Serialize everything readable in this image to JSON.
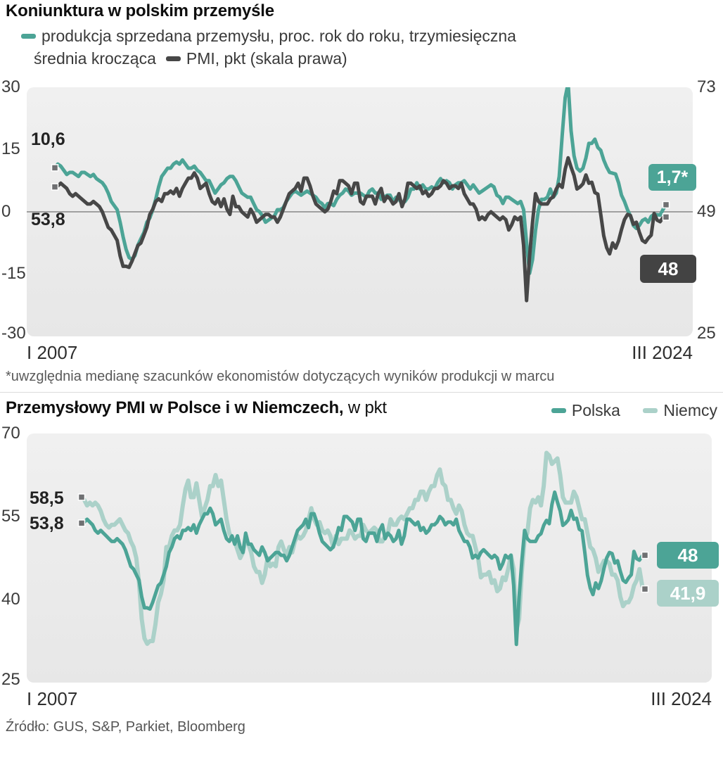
{
  "colors": {
    "teal": "#4ca496",
    "light_teal": "#abd1c9",
    "dark": "#474747",
    "marker": "#6f7072",
    "zero_line": "#a0a0a0"
  },
  "chart1": {
    "title": "Koniunktura w polskim przemyśle",
    "legend": {
      "s1_line1": "produkcja sprzedana przemysłu, proc. rok do roku, trzymiesięczna",
      "s1_line2": "średnia krocząca",
      "s2": "PMI, pkt (skala prawa)"
    },
    "yticks_left": [
      "30",
      "15",
      "0",
      "-15",
      "-30"
    ],
    "yticks_right": [
      "73",
      "49",
      "25"
    ],
    "x_start": "I 2007",
    "x_end": "III 2024",
    "start_labels": {
      "production": "10,6",
      "pmi": "53,8"
    },
    "end_badges": {
      "production": "1,7*",
      "pmi": "48"
    },
    "footnote": "*uwzględnia medianę szacunków ekonomistów dotyczących wyników produkcji w marcu"
  },
  "chart2": {
    "title_bold": "Przemysłowy PMI w Polsce i w Niemczech,",
    "title_rest": " w pkt",
    "legend": {
      "poland": "Polska",
      "germany": "Niemcy"
    },
    "yticks": [
      "70",
      "55",
      "40",
      "25"
    ],
    "x_start": "I 2007",
    "x_end": "III 2024",
    "start_labels": {
      "germany": "58,5",
      "poland": "53,8"
    },
    "end_badges": {
      "poland": "48",
      "germany": "41,9"
    }
  },
  "source": "Źródło: GUS, S&P, Parkiet, Bloomberg",
  "chart_data": [
    {
      "type": "line",
      "title": "Koniunktura w polskim przemyśle",
      "x_start": "I 2007",
      "x_end": "III 2024",
      "x_interval": "monthly",
      "ylim_left": [
        -30,
        30
      ],
      "ylim_right": [
        25,
        73
      ],
      "grid": "zero-line-only",
      "footnote": "*uwzględnia medianę szacunków ekonomistów dotyczących wyników produkcji w marcu",
      "series": [
        {
          "name": "produkcja sprzedana przemysłu, proc. rok do roku, trzymiesięczna średnia krocząca",
          "axis": "left",
          "color": "#4ca496",
          "first_value": 10.6,
          "last_value": 1.7,
          "values": [
            10.6,
            11.5,
            11.0,
            10.0,
            9.0,
            9.5,
            9.5,
            9.0,
            8.5,
            9.5,
            9.5,
            9.0,
            8.5,
            9.0,
            8.0,
            7.5,
            7.0,
            6.0,
            4.5,
            2.5,
            1.5,
            0.5,
            -2.5,
            -6.0,
            -9.0,
            -11.0,
            -11.5,
            -10.5,
            -8.0,
            -6.5,
            -5.0,
            -2.5,
            -1.5,
            0.5,
            3.0,
            6.0,
            8.5,
            9.5,
            10.5,
            10.5,
            11.5,
            12.0,
            11.5,
            12.5,
            11.5,
            10.5,
            10.5,
            11.0,
            10.0,
            9.5,
            8.5,
            7.5,
            7.5,
            6.0,
            4.5,
            5.5,
            6.5,
            7.0,
            8.0,
            8.5,
            8.5,
            7.5,
            6.0,
            4.5,
            4.0,
            3.5,
            3.5,
            2.0,
            0.5,
            0.0,
            -1.0,
            -2.5,
            -2.0,
            -1.5,
            -1.0,
            0.5,
            0.5,
            1.0,
            2.5,
            3.5,
            4.5,
            5.0,
            4.5,
            4.0,
            4.5,
            5.0,
            4.5,
            4.0,
            3.5,
            2.5,
            2.0,
            1.0,
            2.0,
            2.0,
            1.5,
            3.0,
            4.0,
            4.5,
            5.5,
            5.0,
            4.0,
            4.5,
            4.5,
            4.5,
            4.0,
            3.5,
            5.0,
            5.5,
            4.5,
            4.5,
            3.0,
            3.5,
            4.0,
            4.0,
            2.5,
            3.5,
            3.0,
            2.0,
            2.5,
            3.5,
            5.5,
            5.5,
            7.0,
            5.5,
            6.5,
            5.5,
            5.5,
            6.0,
            5.5,
            7.0,
            8.0,
            7.0,
            7.5,
            7.0,
            5.5,
            6.5,
            7.0,
            7.0,
            7.5,
            6.5,
            5.5,
            6.5,
            5.5,
            4.5,
            5.0,
            5.5,
            6.0,
            6.5,
            6.0,
            4.0,
            3.5,
            2.0,
            3.5,
            3.5,
            3.0,
            2.5,
            2.0,
            2.5,
            0.5,
            -7.5,
            -14.8,
            -11.5,
            -4.5,
            0.5,
            3.0,
            3.0,
            3.5,
            5.5,
            3.5,
            4.5,
            8.5,
            18.5,
            27.5,
            31.0,
            19.5,
            13.5,
            10.5,
            9.8,
            10.5,
            13.0,
            16.5,
            16.5,
            17.5,
            15.5,
            14.8,
            12.5,
            10.8,
            9.5,
            9.3,
            9.1,
            7.0,
            4.0,
            2.5,
            0.5,
            -1.0,
            -3.3,
            -4.0,
            -3.3,
            -2.1,
            -1.7,
            -2.5,
            -1.1,
            -0.6,
            -0.7,
            -0.8,
            0.6,
            1.7
          ]
        },
        {
          "name": "PMI, pkt (skala prawa)",
          "axis": "right",
          "color": "#474747",
          "first_value": 53.8,
          "last_value": 48,
          "values": [
            53.8,
            54.0,
            54.5,
            54.0,
            53.5,
            52.5,
            52.0,
            52.5,
            52.0,
            51.5,
            51.0,
            50.5,
            50.5,
            51.0,
            50.5,
            50.0,
            49.0,
            47.5,
            46.0,
            45.5,
            44.5,
            43.5,
            40.5,
            38.5,
            38.5,
            38.3,
            39.5,
            41.0,
            42.5,
            43.0,
            44.5,
            46.0,
            48.5,
            49.5,
            51.0,
            51.5,
            51.0,
            52.5,
            52.5,
            53.0,
            52.5,
            53.5,
            52.0,
            53.5,
            54.5,
            55.5,
            55.5,
            56.5,
            55.5,
            53.5,
            54.0,
            54.5,
            52.5,
            51.0,
            50.5,
            51.5,
            50.0,
            51.5,
            49.5,
            48.5,
            52.0,
            50.0,
            50.0,
            49.0,
            48.5,
            48.0,
            49.5,
            48.5,
            47.0,
            47.5,
            48.0,
            48.5,
            48.5,
            48.0,
            48.0,
            47.0,
            48.0,
            49.5,
            51.0,
            52.5,
            53.0,
            53.5,
            54.5,
            53.0,
            55.5,
            55.5,
            54.0,
            52.0,
            50.5,
            50.0,
            49.5,
            49.0,
            49.5,
            51.0,
            53.0,
            52.5,
            55.0,
            55.0,
            54.5,
            54.0,
            52.5,
            54.5,
            54.5,
            51.0,
            50.5,
            52.0,
            52.0,
            52.0,
            50.5,
            52.5,
            53.5,
            51.0,
            52.0,
            51.5,
            50.5,
            51.0,
            52.5,
            50.0,
            51.5,
            54.5,
            54.5,
            54.0,
            53.5,
            54.0,
            52.5,
            53.0,
            52.0,
            52.5,
            53.5,
            53.5,
            54.0,
            55.0,
            54.5,
            53.5,
            54.0,
            54.0,
            53.5,
            54.5,
            52.5,
            51.5,
            50.5,
            50.5,
            49.5,
            47.5,
            48.0,
            47.5,
            48.5,
            49.0,
            48.5,
            48.0,
            47.5,
            48.0,
            47.5,
            45.5,
            46.5,
            48.0,
            47.5,
            48.0,
            42.5,
            31.9,
            40.5,
            47.0,
            52.5,
            51.0,
            50.5,
            50.5,
            50.5,
            51.5,
            51.9,
            53.4,
            54.3,
            53.7,
            57.2,
            59.4,
            57.6,
            56.0,
            53.4,
            53.8,
            54.4,
            56.1,
            54.5,
            54.7,
            52.7,
            52.4,
            48.5,
            44.4,
            42.1,
            40.9,
            43.0,
            42.0,
            43.4,
            45.6,
            47.5,
            48.5,
            48.3,
            46.6,
            47.0,
            45.1,
            43.5,
            43.1,
            43.9,
            44.5,
            48.7,
            47.4,
            47.1,
            47.9,
            48.0
          ]
        }
      ]
    },
    {
      "type": "line",
      "title": "Przemysłowy PMI w Polsce i w Niemczech, w pkt",
      "x_start": "I 2007",
      "x_end": "III 2024",
      "x_interval": "monthly",
      "ylim": [
        25,
        70
      ],
      "grid": "off",
      "series": [
        {
          "name": "Polska",
          "color": "#4ca496",
          "first_value": 53.8,
          "last_value": 48,
          "values": [
            53.8,
            54.0,
            54.5,
            54.0,
            53.5,
            52.5,
            52.0,
            52.5,
            52.0,
            51.5,
            51.0,
            50.5,
            50.5,
            51.0,
            50.5,
            50.0,
            49.0,
            47.5,
            46.0,
            45.5,
            44.5,
            43.5,
            40.5,
            38.5,
            38.5,
            38.3,
            39.5,
            41.0,
            42.5,
            43.0,
            44.5,
            46.0,
            48.5,
            49.5,
            51.0,
            51.5,
            51.0,
            52.5,
            52.5,
            53.0,
            52.5,
            53.5,
            52.0,
            53.5,
            54.5,
            55.5,
            55.5,
            56.5,
            55.5,
            53.5,
            54.0,
            54.5,
            52.5,
            51.0,
            50.5,
            51.5,
            50.0,
            51.5,
            49.5,
            48.5,
            52.0,
            50.0,
            50.0,
            49.0,
            48.5,
            48.0,
            49.5,
            48.5,
            47.0,
            47.5,
            48.0,
            48.5,
            48.5,
            48.0,
            48.0,
            47.0,
            48.0,
            49.5,
            51.0,
            52.5,
            53.0,
            53.5,
            54.5,
            53.0,
            55.5,
            55.5,
            54.0,
            52.0,
            50.5,
            50.0,
            49.5,
            49.0,
            49.5,
            51.0,
            53.0,
            52.5,
            55.0,
            55.0,
            54.5,
            54.0,
            52.5,
            54.5,
            54.5,
            51.0,
            50.5,
            52.0,
            52.0,
            52.0,
            50.5,
            52.5,
            53.5,
            51.0,
            52.0,
            51.5,
            50.5,
            51.0,
            52.5,
            50.0,
            51.5,
            54.5,
            54.5,
            54.0,
            53.5,
            54.0,
            52.5,
            53.0,
            52.0,
            52.5,
            53.5,
            53.5,
            54.0,
            55.0,
            54.5,
            53.5,
            54.0,
            54.0,
            53.5,
            54.5,
            52.5,
            51.5,
            50.5,
            50.5,
            49.5,
            47.5,
            48.0,
            47.5,
            48.5,
            49.0,
            48.5,
            48.0,
            47.5,
            48.0,
            47.5,
            45.5,
            46.5,
            48.0,
            47.5,
            48.0,
            42.5,
            31.9,
            40.5,
            47.0,
            52.5,
            51.0,
            50.5,
            50.5,
            50.5,
            51.5,
            51.9,
            53.4,
            54.3,
            53.7,
            57.2,
            59.4,
            57.6,
            56.0,
            53.4,
            53.8,
            54.4,
            56.1,
            54.5,
            54.7,
            52.7,
            52.4,
            48.5,
            44.4,
            42.1,
            40.9,
            43.0,
            42.0,
            43.4,
            45.6,
            47.5,
            48.5,
            48.3,
            46.6,
            47.0,
            45.1,
            43.5,
            43.1,
            43.9,
            44.5,
            48.7,
            47.4,
            47.1,
            47.9,
            48.0
          ]
        },
        {
          "name": "Niemcy",
          "color": "#abd1c9",
          "first_value": 58.5,
          "last_value": 41.9,
          "values": [
            58.5,
            58.0,
            57.0,
            57.5,
            57.0,
            57.5,
            57.0,
            56.0,
            54.5,
            53.5,
            53.0,
            53.5,
            53.5,
            54.0,
            54.5,
            53.5,
            52.5,
            52.0,
            50.5,
            49.5,
            47.5,
            43.0,
            36.5,
            33.0,
            32.0,
            32.5,
            32.5,
            35.5,
            39.5,
            41.0,
            43.5,
            49.5,
            49.5,
            51.5,
            52.5,
            52.5,
            53.5,
            57.0,
            60.0,
            61.5,
            58.5,
            58.5,
            61.0,
            58.0,
            55.0,
            56.5,
            58.0,
            60.5,
            60.5,
            62.5,
            60.5,
            61.5,
            58.0,
            54.5,
            52.0,
            51.0,
            50.5,
            49.0,
            47.5,
            48.5,
            51.0,
            50.0,
            48.5,
            46.0,
            45.0,
            45.0,
            43.0,
            44.5,
            47.5,
            46.0,
            46.5,
            46.0,
            49.5,
            50.5,
            49.0,
            48.0,
            49.5,
            48.5,
            50.5,
            51.5,
            51.0,
            51.5,
            52.5,
            54.5,
            56.5,
            54.5,
            53.5,
            54.0,
            52.5,
            52.0,
            52.5,
            51.5,
            49.5,
            51.5,
            50.0,
            51.0,
            51.0,
            51.0,
            52.5,
            52.0,
            51.0,
            51.5,
            51.5,
            53.5,
            52.5,
            52.0,
            52.5,
            53.0,
            52.5,
            50.5,
            50.5,
            51.5,
            52.0,
            54.5,
            53.5,
            53.5,
            54.5,
            55.0,
            54.5,
            55.5,
            56.5,
            56.5,
            58.0,
            58.0,
            59.5,
            59.5,
            58.0,
            59.5,
            60.5,
            60.5,
            62.5,
            63.5,
            61.0,
            60.5,
            58.0,
            58.0,
            56.5,
            55.5,
            57.0,
            56.0,
            53.5,
            52.0,
            51.5,
            51.5,
            49.5,
            47.5,
            44.0,
            44.5,
            44.5,
            45.0,
            43.0,
            43.5,
            41.5,
            42.0,
            44.0,
            43.5,
            45.5,
            48.0,
            45.5,
            34.5,
            36.5,
            45.0,
            51.0,
            52.0,
            56.5,
            58.0,
            57.5,
            58.5,
            57.0,
            60.5,
            66.5,
            66.0,
            64.5,
            65.0,
            65.5,
            62.5,
            58.5,
            57.5,
            57.5,
            57.5,
            59.5,
            58.5,
            56.5,
            54.5,
            54.5,
            52.0,
            49.5,
            49.0,
            47.5,
            45.0,
            46.0,
            47.0,
            47.0,
            46.5,
            44.5,
            44.5,
            43.5,
            40.5,
            38.8,
            39.5,
            39.5,
            40.5,
            42.5,
            43.5,
            45.5,
            42.5,
            41.9
          ]
        }
      ]
    }
  ]
}
